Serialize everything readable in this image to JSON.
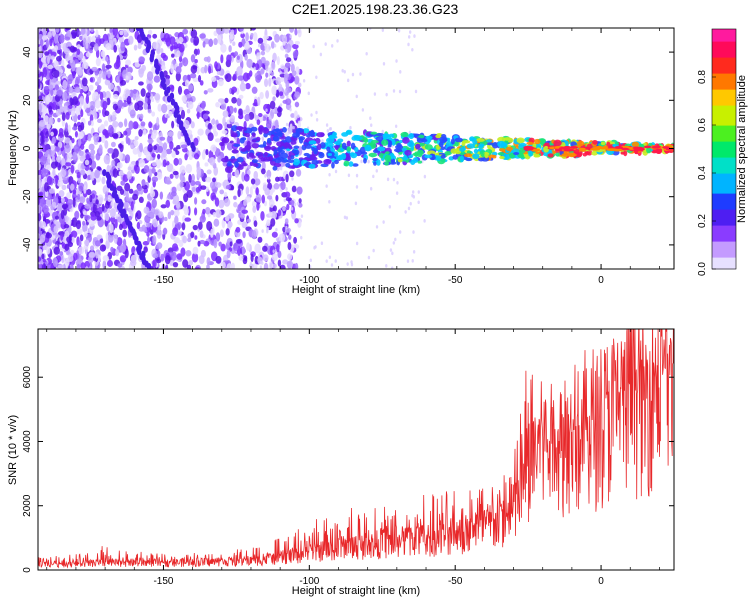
{
  "title": "C2E1.2025.198.23.36.G23",
  "colors": {
    "snr_line": "#e8282a",
    "spectral_band": [
      "#6a1cf0",
      "#2a48ff",
      "#00c8ff",
      "#19e37a",
      "#c8f021",
      "#ff8a00",
      "#ff1a4a"
    ],
    "noise_purple": "#7a2cff"
  },
  "chart_data": [
    {
      "type": "heatmap",
      "xlabel": "Height of straight line (km)",
      "ylabel": "Frequency (Hz)",
      "xlim": [
        -193,
        25
      ],
      "ylim": [
        -50,
        50
      ],
      "xticks": [
        -150,
        -100,
        -50,
        0
      ],
      "yticks": [
        -40,
        -20,
        0,
        20,
        40
      ],
      "colorbar": {
        "label": "Normalized spectral amplitude",
        "range": [
          0.0,
          1.0
        ],
        "ticks": [
          0.0,
          0.2,
          0.4,
          0.6,
          0.8
        ],
        "colors": [
          "#e7e0ff",
          "#c49bff",
          "#8a3cff",
          "#4e1ef2",
          "#1e3cff",
          "#00b4ff",
          "#00e0c8",
          "#00e96a",
          "#4cf020",
          "#c8f000",
          "#ffc800",
          "#ff7800",
          "#ff2a1e",
          "#ff0a5a",
          "#ff1a9e"
        ]
      },
      "signal_band": {
        "x_range": [
          -130,
          25
        ],
        "center_hz": 0,
        "note": ""
      },
      "noise_streaks": [
        {
          "x_start": -158,
          "y_start": 50,
          "x_end": -140,
          "y_end": 0
        },
        {
          "x_start": -170,
          "y_start": -10,
          "x_end": -155,
          "y_end": -50
        }
      ]
    },
    {
      "type": "line",
      "xlabel": "Height of straight line (km)",
      "ylabel": "SNR (10 * v/v)",
      "xlim": [
        -193,
        25
      ],
      "ylim": [
        0,
        7500
      ],
      "xticks": [
        -150,
        -100,
        -50,
        0
      ],
      "yticks": [
        0,
        2000,
        4000,
        6000
      ],
      "series": [
        {
          "envelope_x": [
            -193,
            -180,
            -170,
            -160,
            -150,
            -140,
            -130,
            -120,
            -110,
            -100,
            -90,
            -80,
            -70,
            -60,
            -55,
            -50,
            -45,
            -40,
            -35,
            -30,
            -27,
            -25,
            -24,
            -22,
            -20,
            -15,
            -10,
            -5,
            0,
            5,
            10,
            15,
            20,
            25
          ],
          "envelope_mean": [
            180,
            200,
            220,
            240,
            230,
            250,
            260,
            300,
            400,
            550,
            700,
            800,
            900,
            1000,
            1000,
            1100,
            1200,
            1400,
            1500,
            1800,
            2500,
            3200,
            4200,
            3800,
            4000,
            3800,
            4300,
            4200,
            4700,
            5200,
            5400,
            5600,
            6000,
            6300
          ],
          "envelope_peak": [
            450,
            500,
            800,
            600,
            500,
            550,
            600,
            700,
            1000,
            1500,
            1900,
            2100,
            2000,
            2500,
            2600,
            2800,
            2700,
            2800,
            3000,
            3700,
            6500,
            7500,
            5500,
            5800,
            6200,
            6000,
            6900,
            7000,
            7100,
            7200,
            7300,
            7300,
            7400,
            7400
          ]
        }
      ]
    }
  ]
}
